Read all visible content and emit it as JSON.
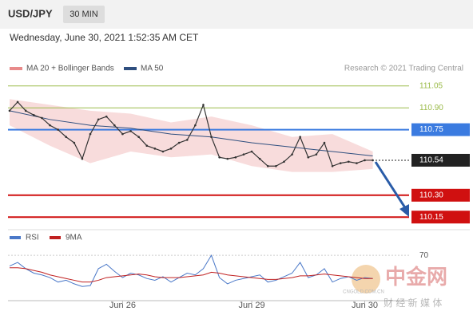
{
  "chart_data": {
    "type": "line",
    "header": {
      "symbol": "USD/JPY",
      "interval": "30 MIN",
      "datetime": "Wednesday, June 30, 2021 1:52:35 AM CET"
    },
    "credit": "Research © 2021 Trading Central",
    "price": {
      "color": "#333333",
      "values": [
        110.88,
        110.94,
        110.88,
        110.85,
        110.83,
        110.78,
        110.75,
        110.7,
        110.66,
        110.55,
        110.72,
        110.82,
        110.84,
        110.78,
        110.72,
        110.74,
        110.7,
        110.64,
        110.62,
        110.6,
        110.62,
        110.66,
        110.68,
        110.78,
        110.92,
        110.7,
        110.56,
        110.55,
        110.56,
        110.58,
        110.6,
        110.55,
        110.5,
        110.5,
        110.53,
        110.58,
        110.7,
        110.56,
        110.58,
        110.66,
        110.5,
        110.52,
        110.53,
        110.52,
        110.54,
        110.54
      ]
    },
    "bollinger": {
      "name": "MA 20 + Bollinger Bands",
      "color": "#e88a8a",
      "x": [
        0,
        5,
        10,
        15,
        20,
        25,
        30,
        35,
        40,
        45
      ],
      "upper": [
        110.96,
        110.92,
        110.88,
        110.86,
        110.8,
        110.84,
        110.78,
        110.7,
        110.72,
        110.6
      ],
      "lower": [
        110.78,
        110.64,
        110.52,
        110.6,
        110.56,
        110.58,
        110.5,
        110.46,
        110.46,
        110.48
      ]
    },
    "ma50": {
      "name": "MA 50",
      "color": "#2f4f7f",
      "x": [
        0,
        5,
        10,
        15,
        20,
        25,
        30,
        35,
        40,
        45
      ],
      "values": [
        110.88,
        110.82,
        110.78,
        110.76,
        110.72,
        110.7,
        110.66,
        110.63,
        110.6,
        110.57
      ]
    },
    "ylim": [
      110.08,
      111.12
    ],
    "xlim": [
      0,
      49
    ],
    "yticks": [
      111.05,
      {
        "value": 110.9,
        "label": "110.90"
      },
      110.75,
      110.54,
      {
        "value": 110.3,
        "label": "110.30"
      },
      110.15
    ],
    "level_colors": [
      "#9bbb4a",
      "#9bbb4a",
      "#3b7be0",
      "#222222",
      "#d01010",
      "#d01010"
    ],
    "level_style": [
      "text",
      "text",
      "box",
      "box",
      "box",
      "box"
    ],
    "xticks": [
      {
        "value": 14,
        "label": "Jun 26"
      },
      {
        "value": 30,
        "label": "Jun 29"
      },
      {
        "value": 44,
        "label": "Jun 30"
      }
    ],
    "rsi": {
      "ylim": [
        20,
        80
      ],
      "yticks": [
        70
      ],
      "series": [
        {
          "name": "RSI",
          "color": "#4a78c8",
          "values": [
            58,
            62,
            55,
            50,
            48,
            45,
            40,
            42,
            38,
            35,
            36,
            55,
            60,
            52,
            45,
            50,
            48,
            44,
            42,
            46,
            40,
            45,
            50,
            48,
            55,
            70,
            45,
            38,
            42,
            44,
            46,
            48,
            40,
            42,
            46,
            50,
            62,
            45,
            48,
            55,
            40,
            44,
            46,
            42,
            45,
            44
          ]
        },
        {
          "name": "9MA",
          "color": "#c02020",
          "values": [
            56,
            56,
            55,
            53,
            51,
            48,
            46,
            44,
            42,
            40,
            40,
            42,
            45,
            46,
            47,
            48,
            49,
            48,
            46,
            45,
            45,
            45,
            46,
            47,
            48,
            51,
            50,
            48,
            47,
            46,
            45,
            44,
            43,
            43,
            44,
            45,
            47,
            47,
            48,
            49,
            48,
            47,
            46,
            45,
            44,
            44
          ]
        }
      ]
    },
    "watermark": {
      "brand": "中金网",
      "site": "CNGOLD.COM.CN",
      "tagline": "财 经 新 媒 体"
    }
  }
}
